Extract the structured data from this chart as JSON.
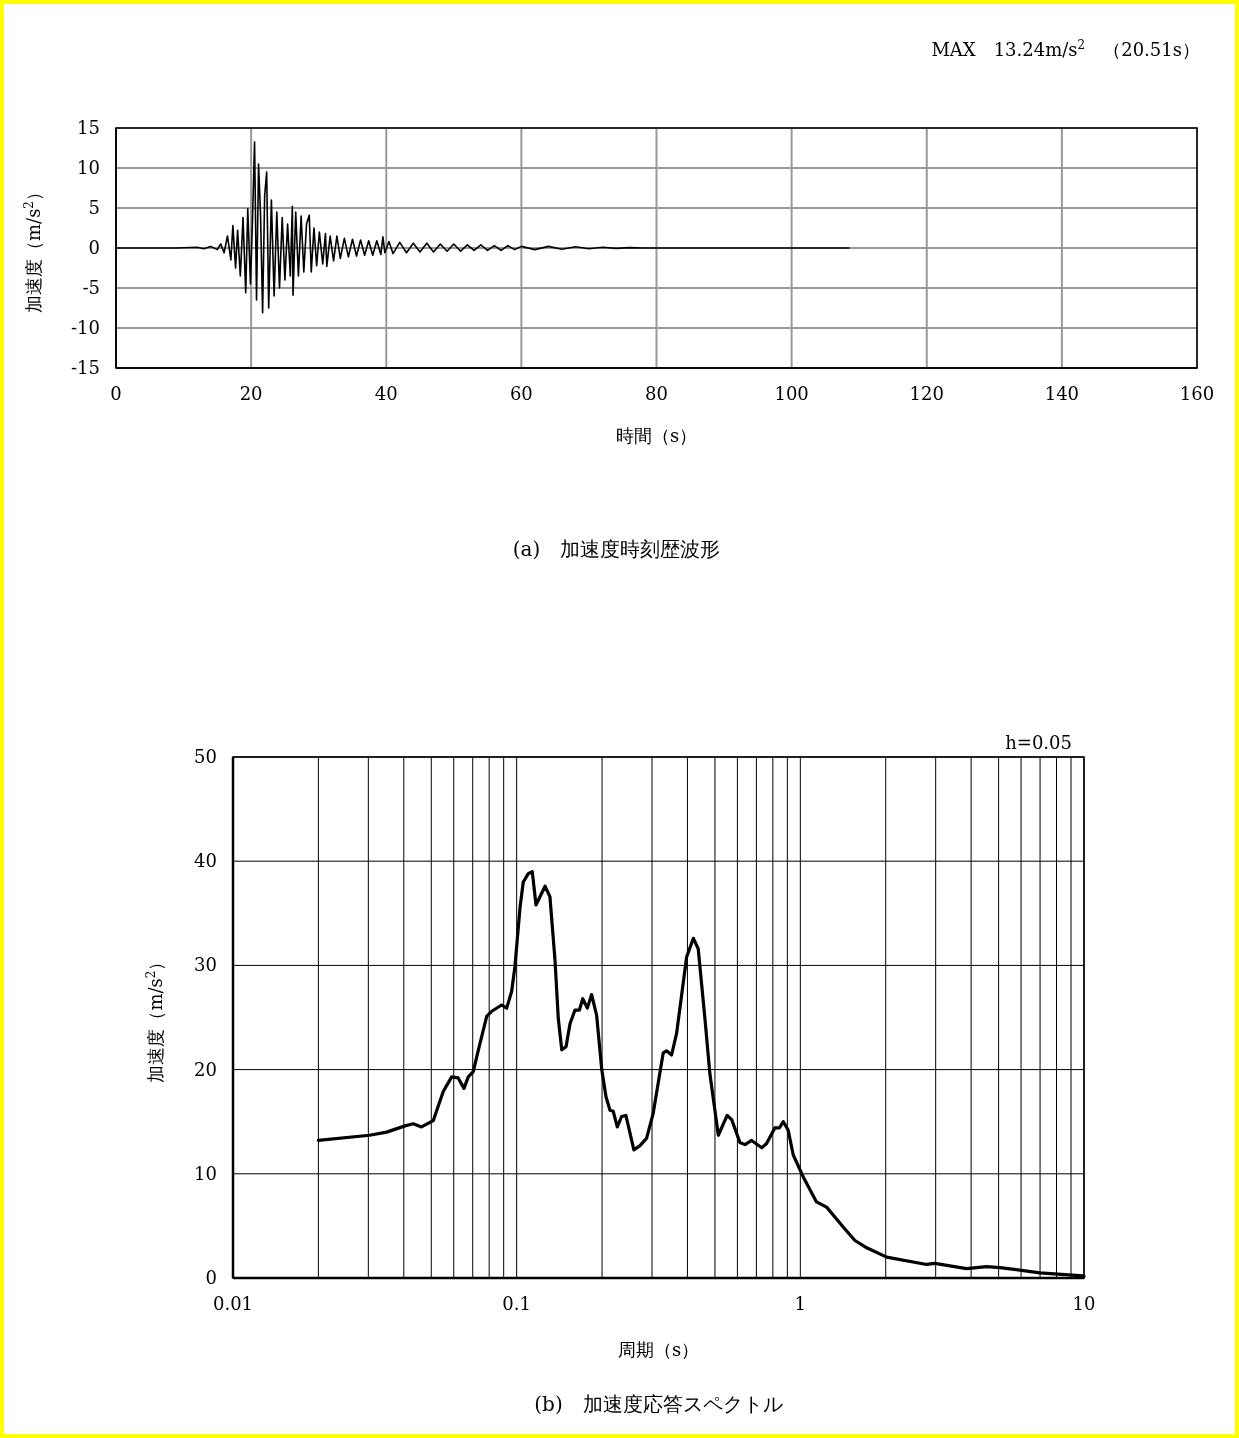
{
  "chart_data": [
    {
      "type": "line",
      "title": "(a)　加速度時刻歴波形",
      "xlabel": "時間（s）",
      "ylabel": "加速度（m/s$^{2}$）",
      "annotations": [
        "MAX　13.24m/s$^{2}$　（20.51s）"
      ],
      "xlim": [
        0,
        160
      ],
      "ylim": [
        -15,
        15
      ],
      "xticks": [
        0,
        20,
        40,
        60,
        80,
        100,
        120,
        140,
        160
      ],
      "yticks": [
        -15,
        -10,
        -5,
        0,
        5,
        10,
        15
      ],
      "grid": true,
      "series": [
        {
          "color": "#000000",
          "x": [
            0,
            9,
            12,
            13,
            14,
            15,
            15.5,
            16,
            16.5,
            17,
            17.3,
            17.7,
            18,
            18.4,
            18.8,
            19.2,
            19.5,
            19.9,
            20.2,
            20.51,
            20.8,
            21.1,
            21.4,
            21.7,
            22,
            22.3,
            22.6,
            23,
            23.4,
            23.8,
            24.2,
            24.6,
            25,
            25.4,
            25.8,
            26.1,
            26.2,
            26.6,
            27,
            27.4,
            27.8,
            28.2,
            28.6,
            28.9,
            29.3,
            29.7,
            30.1,
            30.6,
            31,
            31.2,
            31.7,
            32.2,
            32.7,
            33.2,
            33.8,
            34.4,
            35,
            35.6,
            36.2,
            36.8,
            37.4,
            38,
            38.6,
            39.2,
            39.5,
            39.8,
            40.4,
            41,
            42,
            43,
            44,
            45,
            46,
            47,
            48,
            49,
            50,
            51,
            52,
            53,
            54,
            55,
            56,
            57,
            58,
            59,
            60,
            62,
            64,
            66,
            68,
            70,
            72,
            74,
            76,
            78,
            108.5
          ],
          "values": [
            0,
            0,
            0.1,
            -0.1,
            0.2,
            -0.2,
            0.5,
            -0.6,
            1.5,
            -1.5,
            2.8,
            -2.5,
            2.2,
            -3.5,
            3.8,
            -5.6,
            4.9,
            -4.5,
            3.5,
            13.24,
            -6.5,
            10.5,
            4,
            -8.1,
            6.5,
            9.5,
            -7.5,
            6,
            -6,
            4.5,
            -5,
            3.8,
            -4,
            3,
            -3.5,
            5.2,
            -5.9,
            4.5,
            -3.5,
            4,
            -3,
            3,
            4.1,
            -3,
            2.5,
            -2.2,
            2,
            -2,
            1.8,
            -2.3,
            1.5,
            -1.6,
            1.5,
            -1.3,
            1.2,
            -1.1,
            1.1,
            -1,
            1,
            -0.9,
            0.9,
            -0.9,
            0.9,
            -0.8,
            1.4,
            -0.6,
            0.8,
            -0.7,
            0.7,
            -0.6,
            0.6,
            -0.5,
            0.6,
            -0.5,
            0.5,
            -0.4,
            0.5,
            -0.4,
            0.4,
            -0.3,
            0.4,
            -0.3,
            0.3,
            -0.3,
            0.3,
            -0.2,
            0.2,
            -0.2,
            0.2,
            -0.15,
            0.15,
            -0.1,
            0.1,
            -0.05,
            0.05,
            0,
            0
          ]
        }
      ]
    },
    {
      "type": "line",
      "title": "(b)　加速度応答スペクトル",
      "xlabel": "周期（s）",
      "ylabel": "加速度（m/s$^{2}$）",
      "annotations": [
        "h=0.05"
      ],
      "log": "x",
      "xlim": [
        0.01,
        10
      ],
      "ylim": [
        0,
        50
      ],
      "xticks": [
        0.01,
        {
          "value": 0.02,
          "label": null
        },
        {
          "value": 0.03,
          "label": null
        },
        {
          "value": 0.04,
          "label": null
        },
        {
          "value": 0.05,
          "label": null
        },
        {
          "value": 0.06,
          "label": null
        },
        {
          "value": 0.07,
          "label": null
        },
        {
          "value": 0.08,
          "label": null
        },
        {
          "value": 0.09,
          "label": null
        },
        0.1,
        {
          "value": 0.2,
          "label": null
        },
        {
          "value": 0.3,
          "label": null
        },
        {
          "value": 0.4,
          "label": null
        },
        {
          "value": 0.5,
          "label": null
        },
        {
          "value": 0.6,
          "label": null
        },
        {
          "value": 0.7,
          "label": null
        },
        {
          "value": 0.8,
          "label": null
        },
        {
          "value": 0.9,
          "label": null
        },
        1,
        {
          "value": 2,
          "label": null
        },
        {
          "value": 3,
          "label": null
        },
        {
          "value": 4,
          "label": null
        },
        {
          "value": 5,
          "label": null
        },
        {
          "value": 6,
          "label": null
        },
        {
          "value": 7,
          "label": null
        },
        {
          "value": 8,
          "label": null
        },
        {
          "value": 9,
          "label": null
        },
        10
      ],
      "yticks": [
        0,
        10,
        20,
        30,
        40,
        50
      ],
      "grid": true,
      "series": [
        {
          "color": "#000000",
          "x": [
            0.02,
            0.0303,
            0.0348,
            0.0404,
            0.0432,
            0.0462,
            0.0508,
            0.0551,
            0.059,
            0.0622,
            0.0652,
            0.0675,
            0.0703,
            0.0733,
            0.0784,
            0.0817,
            0.0885,
            0.0922,
            0.096,
            0.0986,
            0.1028,
            0.1055,
            0.1099,
            0.1135,
            0.117,
            0.1259,
            0.131,
            0.1365,
            0.1402,
            0.1442,
            0.1493,
            0.1542,
            0.1604,
            0.1663,
            0.171,
            0.1775,
            0.1838,
            0.1914,
            0.1995,
            0.2065,
            0.2133,
            0.219,
            0.2263,
            0.2344,
            0.2427,
            0.2589,
            0.2721,
            0.287,
            0.3029,
            0.3285,
            0.3377,
            0.3516,
            0.3664,
            0.3973,
            0.4198,
            0.4365,
            0.4613,
            0.4799,
            0.514,
            0.5521,
            0.5728,
            0.6124,
            0.6383,
            0.6731,
            0.7311,
            0.7603,
            0.8128,
            0.8433,
            0.871,
            0.9057,
            0.9441,
            1.024,
            1.14,
            1.238,
            1.416,
            1.558,
            1.714,
            2.015,
            2.786,
            2.98,
            3.855,
            4.537,
            5.058,
            6.998,
            9.93,
            10
          ],
          "values": [
            13.2,
            13.7,
            14.0,
            14.6,
            14.8,
            14.5,
            15.1,
            17.9,
            19.3,
            19.2,
            18.2,
            19.3,
            19.8,
            21.9,
            25.1,
            25.6,
            26.2,
            25.9,
            27.5,
            29.9,
            35.6,
            38.0,
            38.8,
            39.0,
            35.8,
            37.6,
            36.6,
            30.5,
            24.9,
            21.9,
            22.2,
            24.4,
            25.7,
            25.7,
            26.8,
            25.9,
            27.2,
            25.2,
            20.0,
            17.4,
            16.1,
            16.0,
            14.5,
            15.5,
            15.6,
            12.3,
            12.7,
            13.4,
            15.8,
            21.6,
            21.8,
            21.4,
            23.5,
            30.8,
            32.6,
            31.6,
            24.8,
            19.6,
            13.7,
            15.6,
            15.2,
            13.0,
            12.8,
            13.2,
            12.5,
            12.9,
            14.4,
            14.4,
            15.0,
            14.2,
            11.8,
            9.7,
            7.3,
            6.8,
            4.9,
            3.6,
            2.9,
            2.0,
            1.3,
            1.4,
            0.9,
            1.1,
            1.0,
            0.5,
            0.2,
            0.15
          ]
        }
      ]
    }
  ]
}
